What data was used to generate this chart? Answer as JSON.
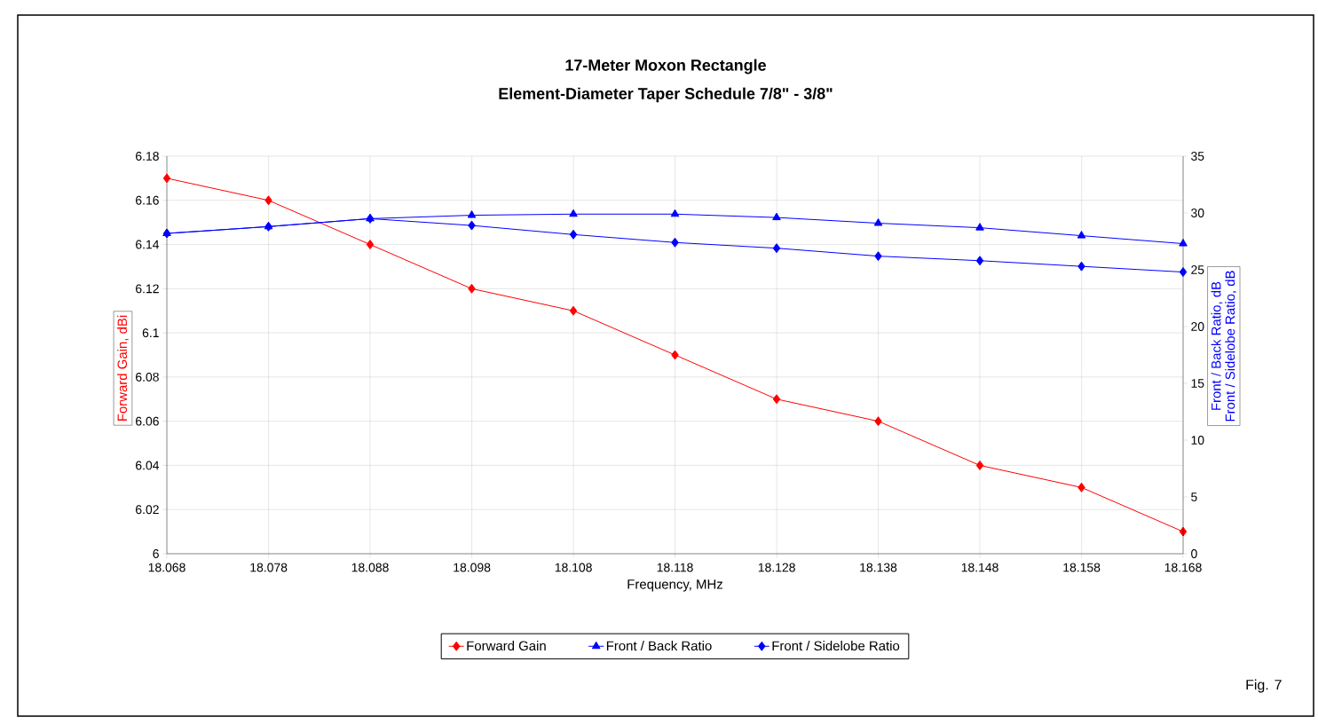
{
  "chart_data": {
    "type": "line",
    "title": "17-Meter Moxon Rectangle",
    "subtitle": "Element-Diameter Taper Schedule 7/8\" - 3/8\"",
    "xlabel": "Frequency, MHz",
    "ylabel": "Forward Gain, dBi",
    "y2label": [
      "Front / Back Ratio,  dB",
      "Front / Sidelobe Ratio,  dB"
    ],
    "x": [
      18.068,
      18.078,
      18.088,
      18.098,
      18.108,
      18.118,
      18.128,
      18.138,
      18.148,
      18.158,
      18.168
    ],
    "series": [
      {
        "name": "Forward Gain",
        "color": "#ff0000",
        "marker": "diamond",
        "values": [
          6.17,
          6.16,
          6.14,
          6.12,
          6.11,
          6.09,
          6.07,
          6.06,
          6.04,
          6.03,
          6.01
        ]
      },
      {
        "name": "Front / Back Ratio",
        "color": "#0000ff",
        "marker": "triangle",
        "axis": "y2",
        "values": [
          28.2,
          28.8,
          29.5,
          29.8,
          29.9,
          29.9,
          29.6,
          29.1,
          28.7,
          28.0,
          27.3
        ]
      },
      {
        "name": "Front / Sidelobe Ratio",
        "color": "#0000ff",
        "marker": "diamond",
        "axis": "y2",
        "values": [
          28.2,
          28.8,
          29.5,
          28.9,
          28.1,
          27.4,
          26.9,
          26.2,
          25.8,
          25.3,
          24.8
        ]
      }
    ],
    "xlim": [
      18.068,
      18.168
    ],
    "xticks": [
      18.068,
      18.078,
      18.088,
      18.098,
      18.108,
      18.118,
      18.128,
      18.138,
      18.148,
      18.158,
      18.168
    ],
    "ylim": [
      6,
      6.18
    ],
    "yticks": [
      6,
      6.02,
      6.04,
      6.06,
      6.08,
      6.1,
      6.12,
      6.14,
      6.16,
      6.18
    ],
    "y2lim": [
      0,
      35
    ],
    "y2ticks": [
      0,
      5,
      10,
      15,
      20,
      25,
      30,
      35
    ],
    "grid": true,
    "legend": "bottom",
    "line_style": "solid",
    "annotations": [
      "Fig. 7"
    ]
  }
}
